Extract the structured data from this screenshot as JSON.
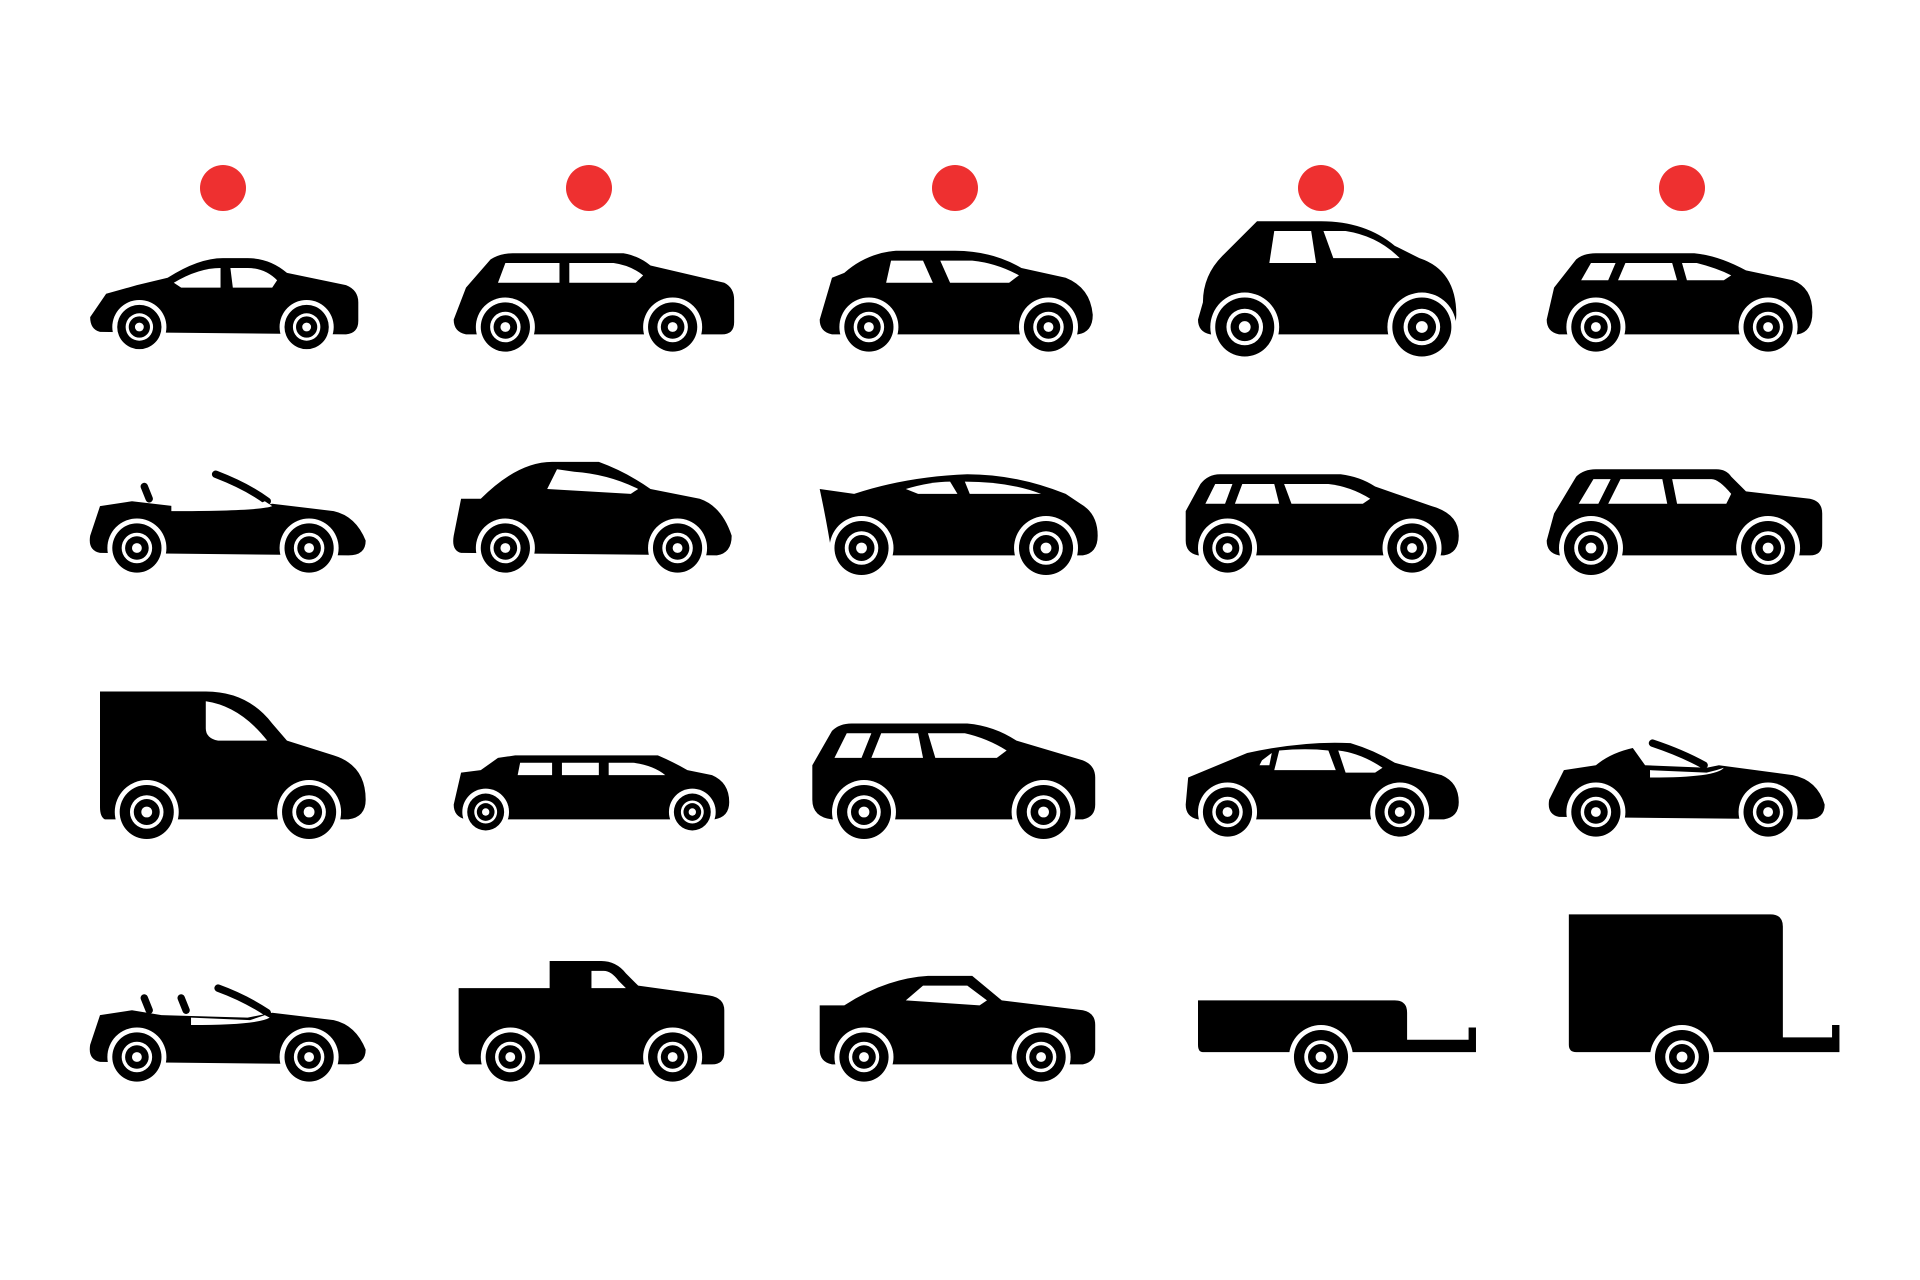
{
  "colors": {
    "background": "#ffffff",
    "icon": "#000000",
    "marker": "#ee3030"
  },
  "markers": [
    {
      "column": 1,
      "name": "red-dot-marker"
    },
    {
      "column": 2,
      "name": "red-dot-marker"
    },
    {
      "column": 3,
      "name": "red-dot-marker"
    },
    {
      "column": 4,
      "name": "red-dot-marker"
    },
    {
      "column": 5,
      "name": "red-dot-marker"
    }
  ],
  "icons": [
    [
      "sedan-icon",
      "station-wagon-icon",
      "hatchback-icon",
      "city-car-icon",
      "compact-wagon-icon"
    ],
    [
      "roadster-icon",
      "sports-coupe-icon",
      "fastback-icon",
      "estate-car-icon",
      "suv-icon"
    ],
    [
      "delivery-van-icon",
      "limousine-icon",
      "crossover-icon",
      "liftback-icon",
      "convertible-icon"
    ],
    [
      "cabriolet-icon",
      "pickup-truck-icon",
      "coupe-icon",
      "flatbed-trailer-icon",
      "box-trailer-icon"
    ]
  ]
}
